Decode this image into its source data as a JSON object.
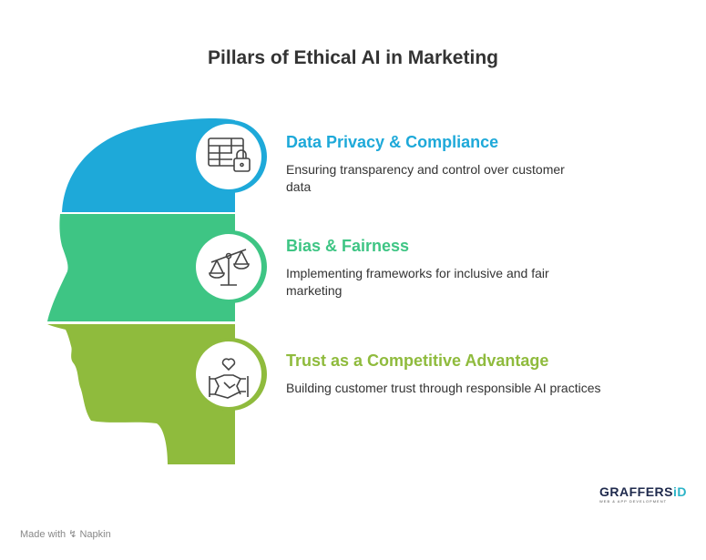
{
  "title": "Pillars of Ethical AI in Marketing",
  "pillars": [
    {
      "title": "Data Privacy & Compliance",
      "description": "Ensuring transparency and control over customer data",
      "color": "#1ea9d9",
      "icon": "data-table-lock-icon"
    },
    {
      "title": "Bias & Fairness",
      "description": "Implementing frameworks for inclusive and fair marketing",
      "color": "#3ec584",
      "icon": "balance-scale-icon"
    },
    {
      "title": "Trust as a Competitive Advantage",
      "description": "Building customer trust through responsible AI practices",
      "color": "#8fbb3d",
      "icon": "heart-handshake-icon"
    }
  ],
  "footer": {
    "made_with": "Made with",
    "brand": "Napkin"
  },
  "logo": {
    "name_main": "GRAFFERS",
    "name_accent": "iD",
    "tagline": "WEB & APP DEVELOPMENT"
  }
}
